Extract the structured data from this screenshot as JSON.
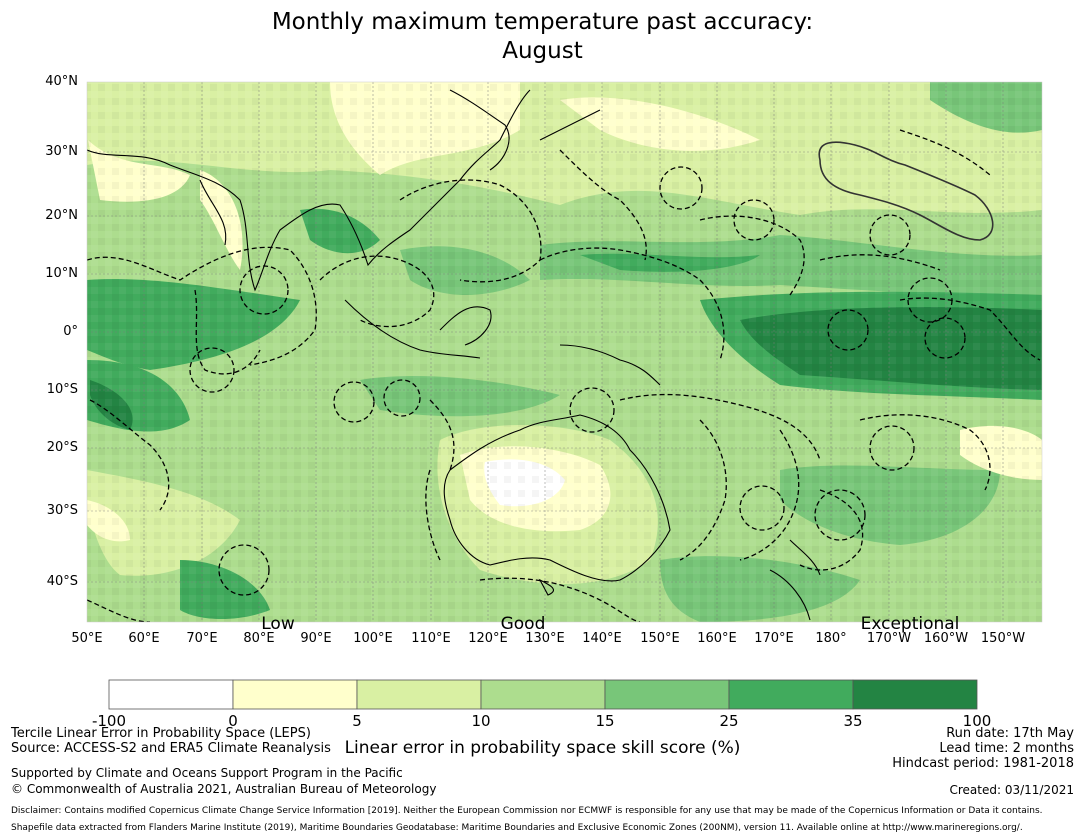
{
  "title_line1": "Monthly maximum temperature past accuracy:",
  "title_line2": "August",
  "lat_labels": [
    "40°N",
    "30°N",
    "20°N",
    "10°N",
    "0°",
    "10°S",
    "20°S",
    "30°S",
    "40°S"
  ],
  "lon_labels": [
    "50°E",
    "60°E",
    "70°E",
    "80°E",
    "90°E",
    "100°E",
    "110°E",
    "120°E",
    "130°E",
    "140°E",
    "150°E",
    "160°E",
    "170°E",
    "180°",
    "170°W",
    "160°W",
    "150°W"
  ],
  "categories": [
    "Low",
    "Good",
    "Exceptional"
  ],
  "colorbar": {
    "ticks": [
      "-100",
      "0",
      "5",
      "10",
      "15",
      "25",
      "35",
      "100"
    ],
    "colors": [
      "#ffffff",
      "#ffffcc",
      "#d9f0a3",
      "#addd8e",
      "#78c679",
      "#41ab5d",
      "#238443"
    ],
    "label": "Linear error in probability space skill score (%)"
  },
  "footer": {
    "method": "Tercile Linear Error in Probability Space (LEPS)",
    "source": "Source: ACCESS-S2 and ERA5 Climate Reanalysis",
    "supported": "Supported by Climate and Oceans Support Program in the Pacific",
    "copyright": "© Commonwealth of Australia 2021, Australian Bureau of Meteorology",
    "run_date": "Run date: 17th May",
    "lead_time": "Lead time: 2 months",
    "hindcast": "Hindcast period: 1981-2018",
    "created": "Created: 03/11/2021",
    "disclaimer": "Disclaimer: Contains modified Copernicus Climate Change Service Information [2019]. Neither the European Commission nor ECMWF is responsible for any use that may be made of the Copernicus Information or Data it contains.",
    "shapefile": "Shapefile data extracted from Flanders Marine Institute (2019), Maritime Boundaries Geodatabase: Maritime Boundaries and Exclusive Economic Zones (200NM), version 11. Available online at http://www.marineregions.org/."
  }
}
